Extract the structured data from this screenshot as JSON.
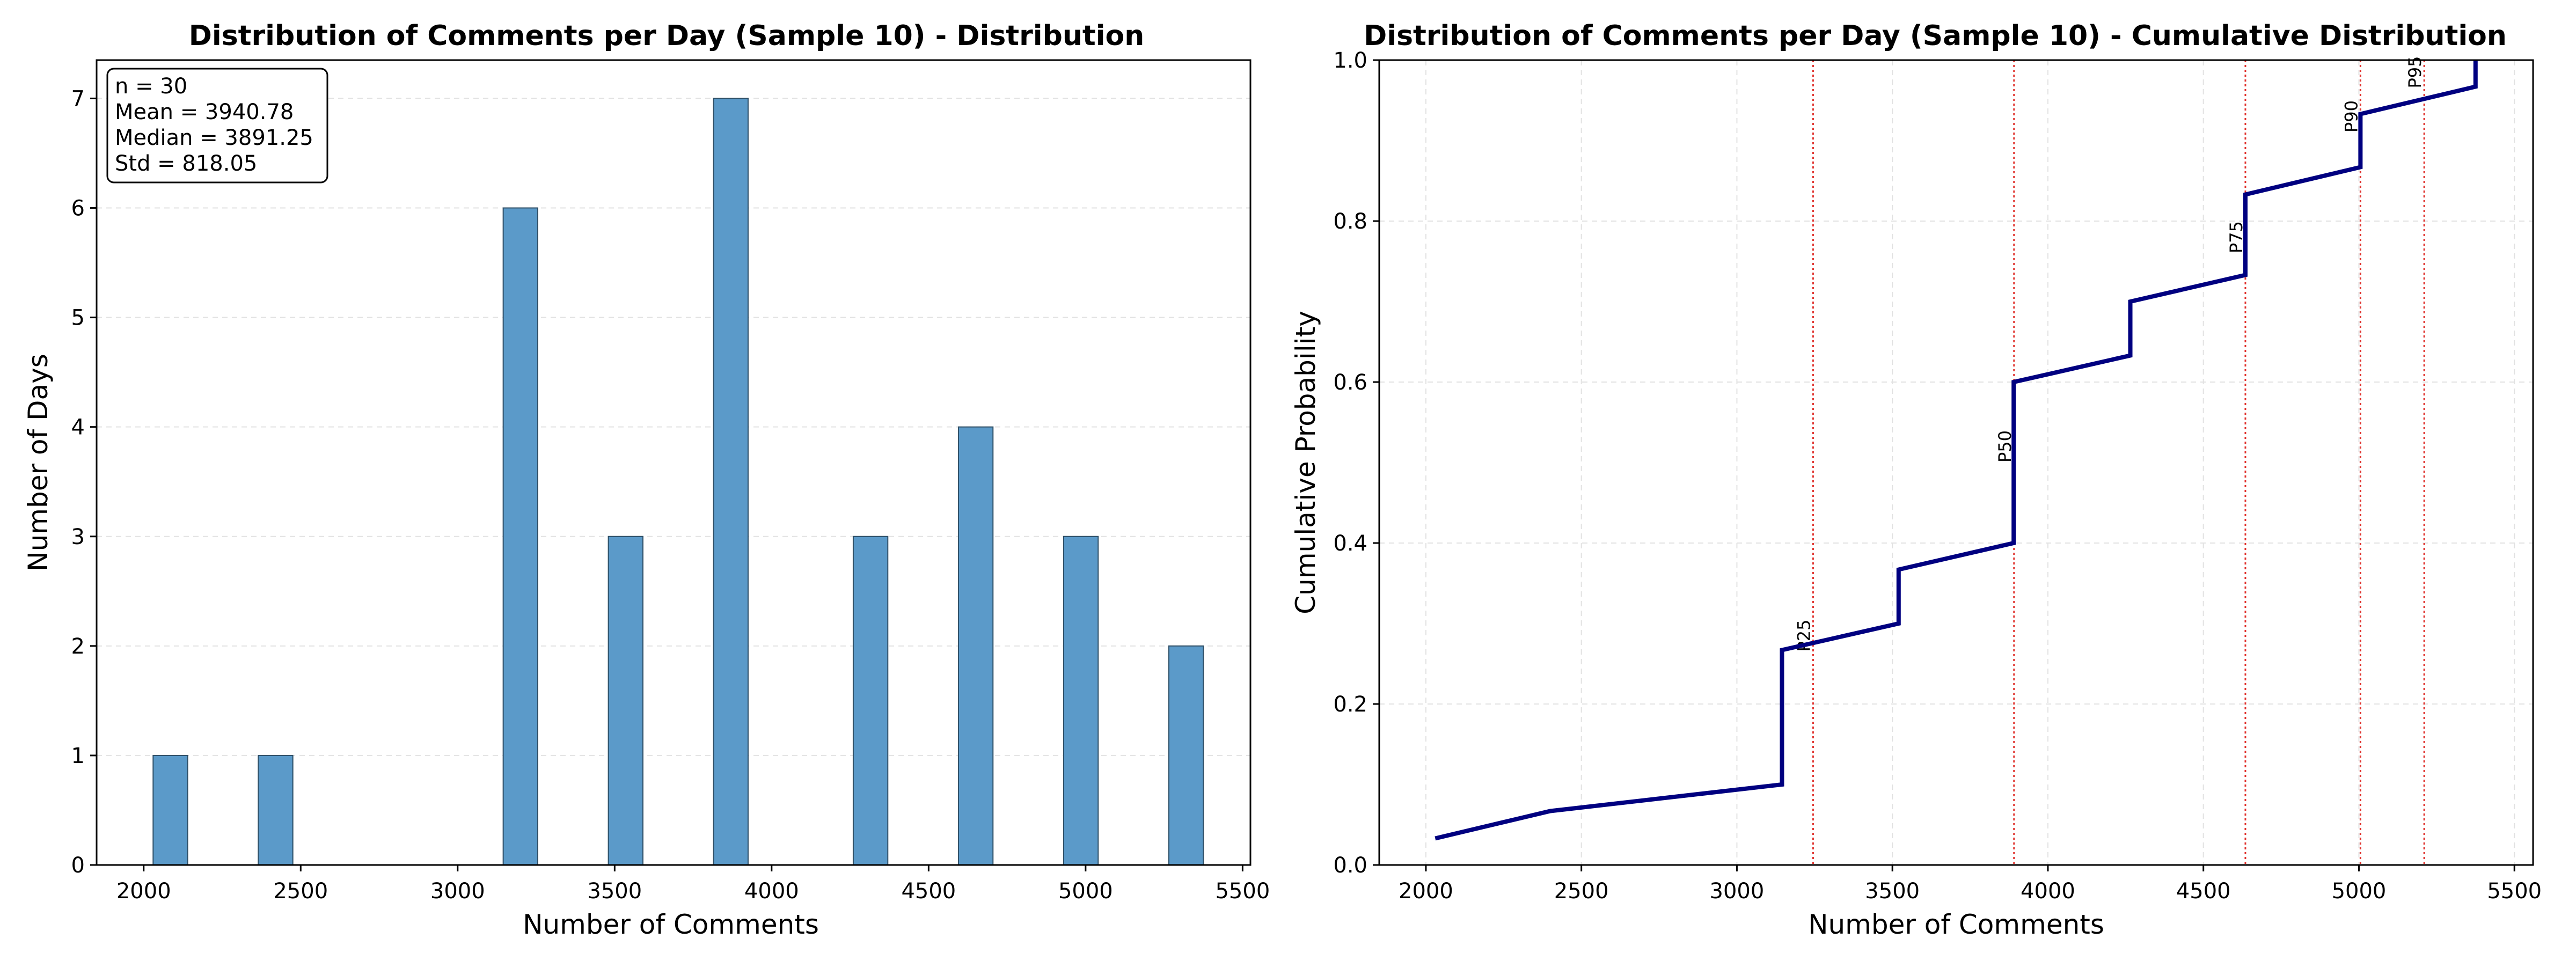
{
  "chart_data": [
    {
      "type": "bar",
      "title": "Distribution of Comments per Day (Sample 10) - Distribution",
      "xlabel": "Number of Comments",
      "ylabel": "Number of Days",
      "xlim": [
        1850,
        5525
      ],
      "ylim": [
        0,
        7.35
      ],
      "xticks": [
        2000,
        2500,
        3000,
        3500,
        4000,
        4500,
        5000,
        5500
      ],
      "yticks": [
        0,
        1,
        2,
        3,
        4,
        5,
        6,
        7
      ],
      "grid": "y-dashed",
      "bar_color": "#5b9ac9",
      "bins": [
        {
          "x0": 2030,
          "x1": 2140,
          "value": 1
        },
        {
          "x0": 2365,
          "x1": 2475,
          "value": 1
        },
        {
          "x0": 3145,
          "x1": 3255,
          "value": 6
        },
        {
          "x0": 3480,
          "x1": 3590,
          "value": 3
        },
        {
          "x0": 3815,
          "x1": 3925,
          "value": 7
        },
        {
          "x0": 4260,
          "x1": 4370,
          "value": 3
        },
        {
          "x0": 4595,
          "x1": 4705,
          "value": 4
        },
        {
          "x0": 4930,
          "x1": 5040,
          "value": 3
        },
        {
          "x0": 5265,
          "x1": 5375,
          "value": 2
        }
      ],
      "stats_box": [
        "n = 30",
        "Mean = 3940.78",
        "Median = 3891.25",
        "Std = 818.05"
      ]
    },
    {
      "type": "line",
      "title": "Distribution of Comments per Day (Sample 10) - Cumulative Distribution",
      "xlabel": "Number of Comments",
      "ylabel": "Cumulative Probability",
      "xlim": [
        1850,
        5560
      ],
      "ylim": [
        0,
        1.0
      ],
      "xticks": [
        2000,
        2500,
        3000,
        3500,
        4000,
        4500,
        5000,
        5500
      ],
      "yticks": [
        0.0,
        0.2,
        0.4,
        0.6,
        0.8,
        1.0
      ],
      "grid": "both-dashed",
      "line_color": "#000080",
      "points": [
        [
          2030,
          0.033
        ],
        [
          2400,
          0.067
        ],
        [
          3145,
          0.1
        ],
        [
          3145,
          0.267
        ],
        [
          3520,
          0.3
        ],
        [
          3520,
          0.367
        ],
        [
          3890,
          0.4
        ],
        [
          3890,
          0.6
        ],
        [
          4265,
          0.633
        ],
        [
          4265,
          0.7
        ],
        [
          4635,
          0.733
        ],
        [
          4635,
          0.833
        ],
        [
          5005,
          0.867
        ],
        [
          5005,
          0.933
        ],
        [
          5375,
          0.967
        ],
        [
          5375,
          1.0
        ]
      ],
      "percentiles": [
        {
          "label": "P25",
          "x": 3245
        },
        {
          "label": "P50",
          "x": 3891
        },
        {
          "label": "P75",
          "x": 4635
        },
        {
          "label": "P90",
          "x": 5005
        },
        {
          "label": "P95",
          "x": 5210
        }
      ],
      "percentile_color": "#e0332e"
    }
  ]
}
